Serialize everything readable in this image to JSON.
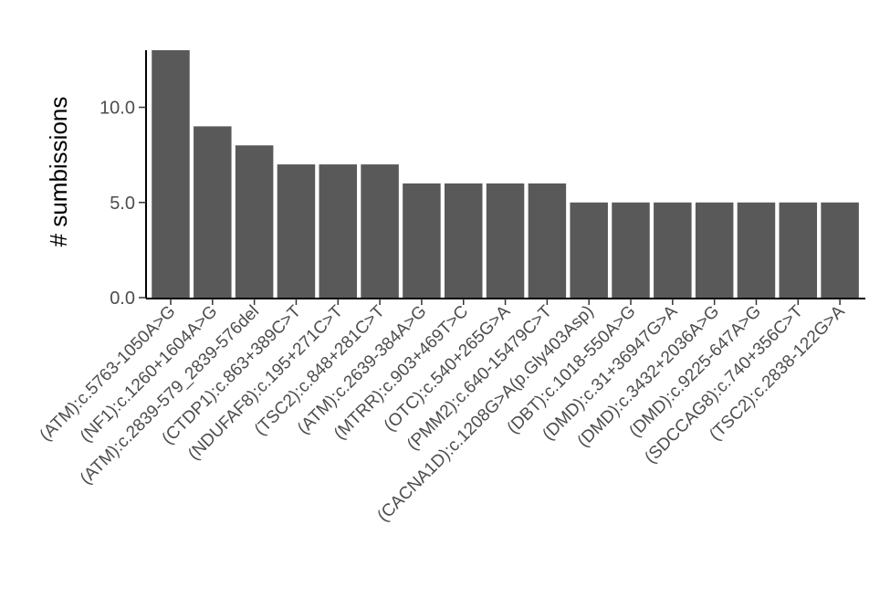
{
  "chart_data": {
    "type": "bar",
    "ylabel": "# sumbissions",
    "xlabel": "",
    "ylim": [
      0,
      13
    ],
    "yticks": [
      0,
      5,
      10
    ],
    "ytick_labels": [
      "0.0",
      "5.0",
      "10.0"
    ],
    "grid": false,
    "bar_color": "#595959",
    "categories": [
      "(ATM):c.5763-1050A>G",
      "(NF1):c.1260+1604A>G",
      "(ATM):c.2839-579_2839-576del",
      "(CTDP1):c.863+389C>T",
      "(NDUFAF8):c.195+271C>T",
      "(TSC2):c.848+281C>T",
      "(ATM):c.2639-384A>G",
      "(MTRR):c.903+469T>C",
      "(OTC):c.540+265G>A",
      "(PMM2):c.640-15479C>T",
      "(CACNA1D):c.1208G>A(p.Gly403Asp)",
      "(DBT):c.1018-550A>G",
      "(DMD):c.31+36947G>A",
      "(DMD):c.3432+2036A>G",
      "(DMD):c.9225-647A>G",
      "(SDCCAG8):c.740+356C>T",
      "(TSC2):c.2838-122G>A"
    ],
    "values": [
      13,
      9,
      8,
      7,
      7,
      7,
      6,
      6,
      6,
      6,
      5,
      5,
      5,
      5,
      5,
      5,
      5
    ]
  }
}
